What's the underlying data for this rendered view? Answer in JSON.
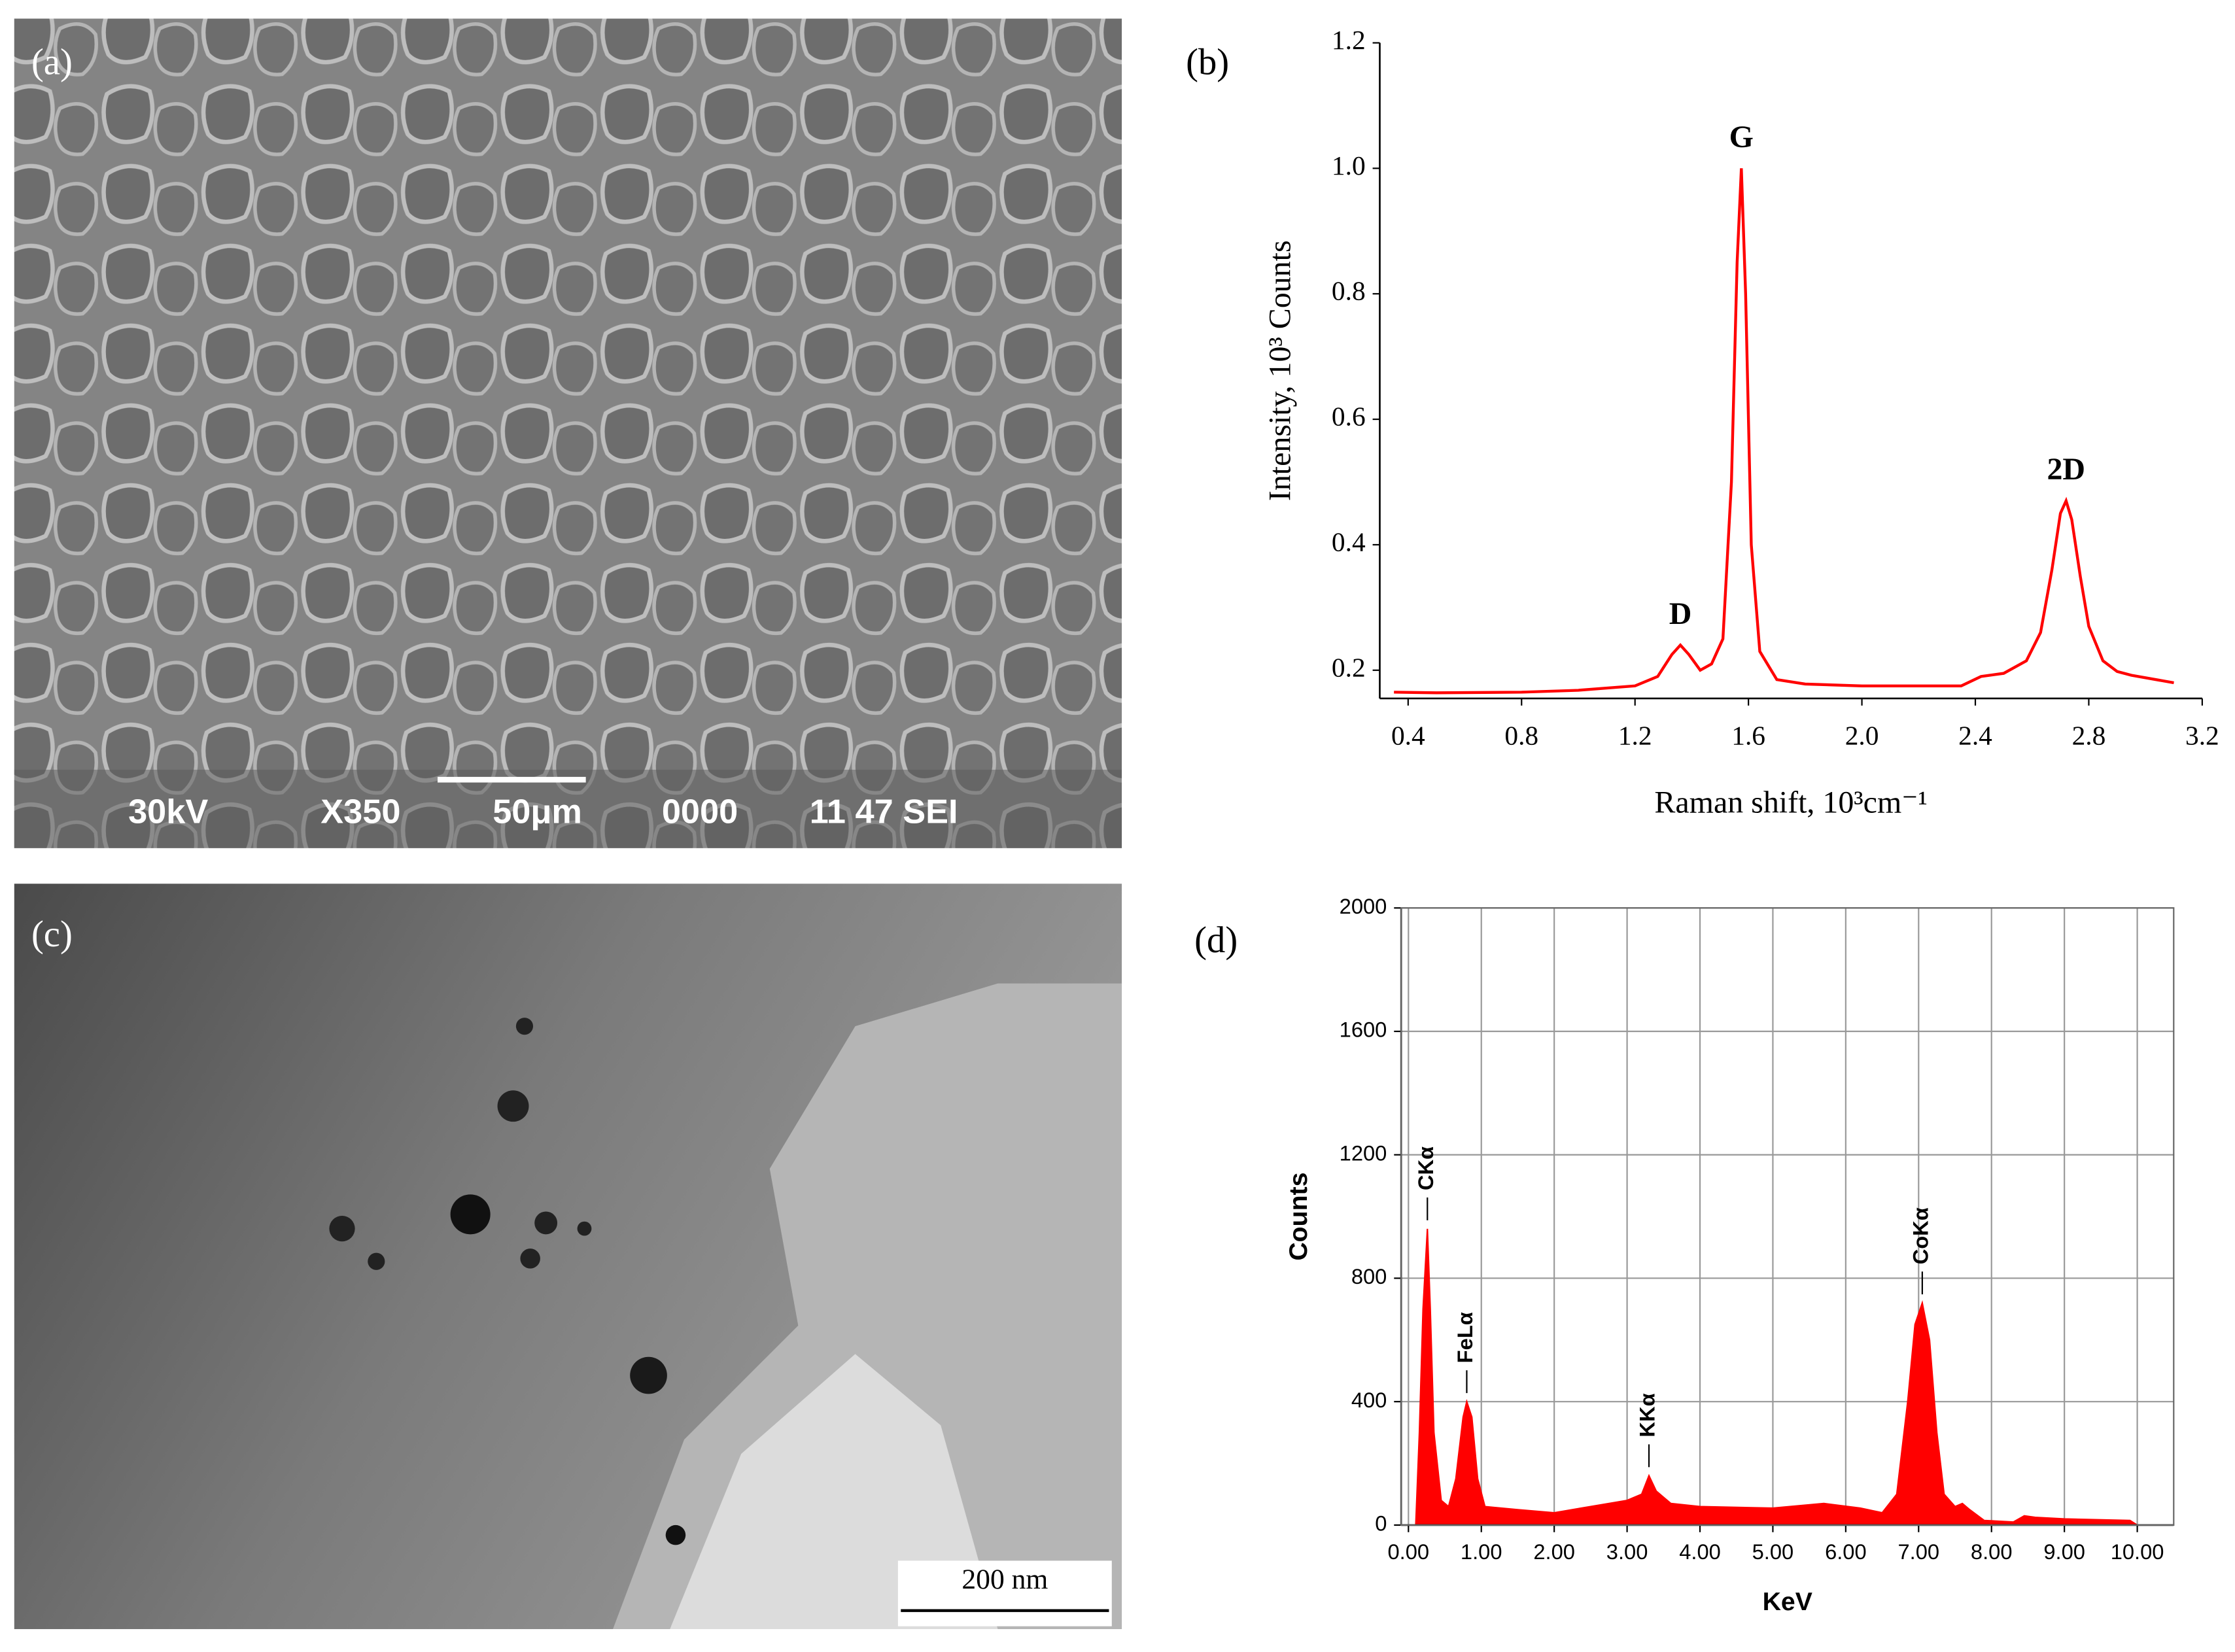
{
  "images": [
    {
      "panel_label": "(a)",
      "overlay": [
        "30kV",
        "X350",
        "50μm",
        "0000",
        "11 47 SEI"
      ]
    },
    {
      "panel_label": "(c)",
      "scale_bar": "200 nm"
    }
  ],
  "chart_data": [
    {
      "type": "line",
      "panel_label": "(b)",
      "font": "serif",
      "x_label": "Raman shift, 10³cm⁻¹",
      "y_label": "Intensity, 10³ Counts",
      "color": "#ff0000",
      "x": [
        0.35,
        0.5,
        0.8,
        1.0,
        1.2,
        1.28,
        1.33,
        1.36,
        1.39,
        1.43,
        1.47,
        1.51,
        1.54,
        1.56,
        1.575,
        1.59,
        1.61,
        1.64,
        1.7,
        1.8,
        2.0,
        2.35,
        2.42,
        2.5,
        2.58,
        2.63,
        2.67,
        2.7,
        2.72,
        2.74,
        2.77,
        2.8,
        2.85,
        2.9,
        2.95,
        3.1
      ],
      "values": [
        0.165,
        0.164,
        0.165,
        0.168,
        0.175,
        0.19,
        0.225,
        0.24,
        0.225,
        0.2,
        0.21,
        0.25,
        0.5,
        0.85,
        1.0,
        0.8,
        0.4,
        0.23,
        0.185,
        0.178,
        0.175,
        0.175,
        0.19,
        0.195,
        0.215,
        0.26,
        0.36,
        0.45,
        0.47,
        0.44,
        0.35,
        0.27,
        0.215,
        0.198,
        0.192,
        0.18
      ],
      "xlim": [
        0.3,
        3.2
      ],
      "ylim": [
        0.155,
        1.2
      ],
      "xticks": [
        0.4,
        0.8,
        1.2,
        1.6,
        {
          "value": 2,
          "label": "2.0"
        },
        2.4,
        2.8,
        3.2
      ],
      "yticks": [
        0.2,
        0.4,
        0.6,
        0.8,
        {
          "value": 1,
          "label": "1.0"
        },
        1.2
      ],
      "grid": false,
      "annotations": [
        {
          "text": "D",
          "x": 1.36,
          "y": 0.24
        },
        {
          "text": "G",
          "x": 1.575,
          "y": 1.0
        },
        {
          "text": "2D",
          "x": 2.72,
          "y": 0.47
        }
      ]
    },
    {
      "type": "area",
      "panel_label": "(d)",
      "font": "sans",
      "x_label": "KeV",
      "y_label": "Counts",
      "color": "#ff0000",
      "x": [
        0.1,
        0.15,
        0.2,
        0.26,
        0.3,
        0.35,
        0.45,
        0.55,
        0.65,
        0.75,
        0.8,
        0.87,
        0.95,
        1.05,
        1.5,
        2.0,
        2.5,
        3.0,
        3.2,
        3.3,
        3.4,
        3.6,
        4.0,
        5.0,
        5.7,
        6.2,
        6.5,
        6.7,
        6.85,
        6.95,
        7.05,
        7.15,
        7.25,
        7.35,
        7.5,
        7.6,
        7.7,
        7.9,
        8.3,
        8.45,
        8.6,
        9.0,
        9.9,
        10.0
      ],
      "values": [
        0,
        300,
        700,
        960,
        700,
        300,
        80,
        60,
        150,
        350,
        400,
        350,
        150,
        60,
        50,
        40,
        60,
        80,
        100,
        160,
        110,
        70,
        60,
        55,
        70,
        55,
        40,
        100,
        400,
        650,
        720,
        600,
        300,
        100,
        60,
        70,
        50,
        15,
        10,
        30,
        25,
        20,
        15,
        0
      ],
      "xlim": [
        -0.1,
        10.5
      ],
      "ylim": [
        0,
        2000
      ],
      "xticks": [
        {
          "value": 0,
          "label": "0.00"
        },
        {
          "value": 1,
          "label": "1.00"
        },
        {
          "value": 2,
          "label": "2.00"
        },
        {
          "value": 3,
          "label": "3.00"
        },
        {
          "value": 4,
          "label": "4.00"
        },
        {
          "value": 5,
          "label": "5.00"
        },
        {
          "value": 6,
          "label": "6.00"
        },
        {
          "value": 7,
          "label": "7.00"
        },
        {
          "value": 8,
          "label": "8.00"
        },
        {
          "value": 9,
          "label": "9.00"
        },
        {
          "value": 10,
          "label": "10.00"
        }
      ],
      "yticks": [
        0,
        400,
        800,
        1200,
        1600,
        2000
      ],
      "grid": true,
      "annotations": [
        {
          "text": "CKα",
          "x": 0.26,
          "y": 960
        },
        {
          "text": "FeLα",
          "x": 0.8,
          "y": 400
        },
        {
          "text": "KKα",
          "x": 3.3,
          "y": 160
        },
        {
          "text": "CoKα",
          "x": 7.05,
          "y": 720
        }
      ]
    }
  ]
}
